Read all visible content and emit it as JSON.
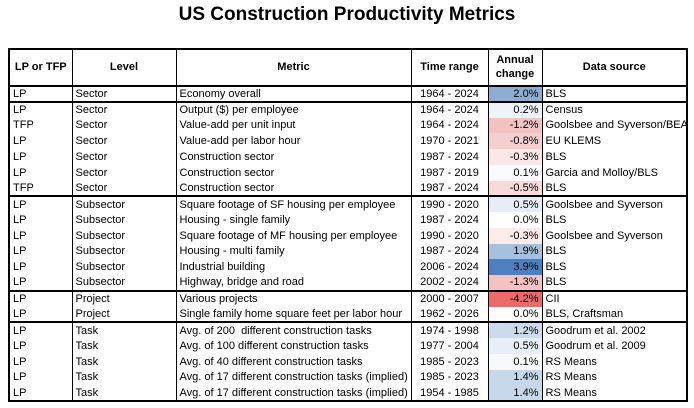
{
  "title": "US Construction Productivity Metrics",
  "chart_data": {
    "type": "table",
    "title": "US Construction Productivity Metrics",
    "columns": [
      {
        "key": "lp",
        "label": "LP or TFP"
      },
      {
        "key": "level",
        "label": "Level"
      },
      {
        "key": "metric",
        "label": "Metric"
      },
      {
        "key": "time",
        "label": "Time range"
      },
      {
        "key": "change",
        "label": "Annual change"
      },
      {
        "key": "source",
        "label": "Data source"
      }
    ],
    "legend": {
      "positive_color": "#4d80c0",
      "negative_color": "#ee6a67",
      "neutral_color": "#ffffff"
    },
    "rows": [
      {
        "lp": "LP",
        "level": "Sector",
        "metric": "Economy overall",
        "time": "1964 - 2024",
        "change": "2.0%",
        "change_value": 2.0,
        "fill": "#8eadd3",
        "source": "BLS",
        "section_end": true
      },
      {
        "lp": "LP",
        "level": "Sector",
        "metric": "Output ($) per employee",
        "time": "1964 - 2024",
        "change": "0.2%",
        "change_value": 0.2,
        "fill": "#eef2f9",
        "source": "Census",
        "section_end": false
      },
      {
        "lp": "TFP",
        "level": "Sector",
        "metric": "Value-add per unit input",
        "time": "1964 - 2024",
        "change": "-1.2%",
        "change_value": -1.2,
        "fill": "#f2c2c1",
        "source": "Goolsbee and Syverson/BEA",
        "section_end": false
      },
      {
        "lp": "LP",
        "level": "Sector",
        "metric": "Value-add per labor hour",
        "time": "1970 - 2021",
        "change": "-0.8%",
        "change_value": -0.8,
        "fill": "#f5cfcf",
        "source": "EU KLEMS",
        "section_end": false
      },
      {
        "lp": "LP",
        "level": "Sector",
        "metric": "Construction sector",
        "time": "1987 - 2024",
        "change": "-0.3%",
        "change_value": -0.3,
        "fill": "#fae7e6",
        "source": "BLS",
        "section_end": false
      },
      {
        "lp": "LP",
        "level": "Sector",
        "metric": "Construction sector",
        "time": "1987 - 2019",
        "change": "0.1%",
        "change_value": 0.1,
        "fill": "#fbfafc",
        "source": "Garcia and Molloy/BLS",
        "section_end": false
      },
      {
        "lp": "TFP",
        "level": "Sector",
        "metric": "Construction sector",
        "time": "1987 - 2024",
        "change": "-0.5%",
        "change_value": -0.5,
        "fill": "#f7dad9",
        "source": "BLS",
        "section_end": true
      },
      {
        "lp": "LP",
        "level": "Subsector",
        "metric": "Square footage of SF housing per employee",
        "time": "1990 - 2020",
        "change": "0.5%",
        "change_value": 0.5,
        "fill": "#e6edf6",
        "source": "Goolsbee and Syverson",
        "section_end": false
      },
      {
        "lp": "LP",
        "level": "Subsector",
        "metric": "Housing - single family",
        "time": "1987 - 2024",
        "change": "0.0%",
        "change_value": 0.0,
        "fill": "#ffffff",
        "source": "BLS",
        "section_end": false
      },
      {
        "lp": "LP",
        "level": "Subsector",
        "metric": "Square footage of MF housing per employee",
        "time": "1990 - 2020",
        "change": "-0.3%",
        "change_value": -0.3,
        "fill": "#fbecea",
        "source": "Goolsbee and Syverson",
        "section_end": false
      },
      {
        "lp": "LP",
        "level": "Subsector",
        "metric": "Housing - multi family",
        "time": "1987 - 2024",
        "change": "1.9%",
        "change_value": 1.9,
        "fill": "#a6c1dd",
        "source": "BLS",
        "section_end": false
      },
      {
        "lp": "LP",
        "level": "Subsector",
        "metric": "Industrial building",
        "time": "2006 - 2024",
        "change": "3.9%",
        "change_value": 3.9,
        "fill": "#4d80c0",
        "source": "BLS",
        "section_end": false
      },
      {
        "lp": "LP",
        "level": "Subsector",
        "metric": "Highway, bridge and road",
        "time": "2002 - 2024",
        "change": "-1.3%",
        "change_value": -1.3,
        "fill": "#f3c2c2",
        "source": "BLS",
        "section_end": true
      },
      {
        "lp": "LP",
        "level": "Project",
        "metric": "Various projects",
        "time": "2000 - 2007",
        "change": "-4.2%",
        "change_value": -4.2,
        "fill": "#ee6a67",
        "source": "CII",
        "section_end": false
      },
      {
        "lp": "LP",
        "level": "Project",
        "metric": "Single family home square feet per labor hour",
        "time": "1962 - 2026",
        "change": "0.0%",
        "change_value": 0.0,
        "fill": "#fdfdfe",
        "source": "BLS, Craftsman",
        "section_end": true
      },
      {
        "lp": "LP",
        "level": "Task",
        "metric": "Avg. of 200  different construction tasks",
        "time": "1974 - 1998",
        "change": "1.2%",
        "change_value": 1.2,
        "fill": "#cbdbed",
        "source": "Goodrum et al. 2002",
        "section_end": false
      },
      {
        "lp": "LP",
        "level": "Task",
        "metric": "Avg. of 100 different construction tasks",
        "time": "1977 - 2004",
        "change": "0.5%",
        "change_value": 0.5,
        "fill": "#e8eef7",
        "source": "Goodrum et al. 2009",
        "section_end": false
      },
      {
        "lp": "LP",
        "level": "Task",
        "metric": "Avg. of 40 different construction tasks",
        "time": "1985 - 2023",
        "change": "0.1%",
        "change_value": 0.1,
        "fill": "#f7f9fc",
        "source": "RS Means",
        "section_end": false
      },
      {
        "lp": "LP",
        "level": "Task",
        "metric": "Avg. of 17 different construction tasks (implied)",
        "time": "1985 - 2023",
        "change": "1.4%",
        "change_value": 1.4,
        "fill": "#c7d8eb",
        "source": "RS Means",
        "section_end": false
      },
      {
        "lp": "LP",
        "level": "Task",
        "metric": "Avg. of 17 different construction tasks (implied)",
        "time": "1954 - 1985",
        "change": "1.4%",
        "change_value": 1.4,
        "fill": "#c7d8eb",
        "source": "RS Means",
        "section_end": false
      }
    ]
  }
}
